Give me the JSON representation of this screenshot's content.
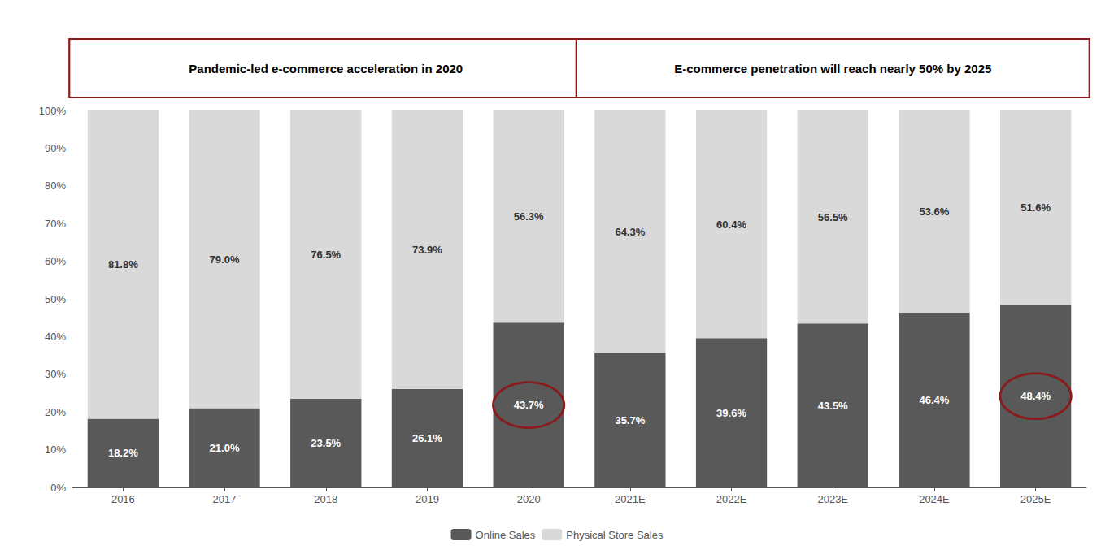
{
  "chart_data": {
    "type": "bar",
    "stacked": true,
    "categories": [
      "2016",
      "2017",
      "2018",
      "2019",
      "2020",
      "2021E",
      "2022E",
      "2023E",
      "2024E",
      "2025E"
    ],
    "series": [
      {
        "name": "Online Sales",
        "color": "#595959",
        "values": [
          18.2,
          21.0,
          23.5,
          26.1,
          43.7,
          35.7,
          39.6,
          43.5,
          46.4,
          48.4
        ],
        "value_labels": [
          "18.2%",
          "21.0%",
          "23.5%",
          "26.1%",
          "43.7%",
          "35.7%",
          "39.6%",
          "43.5%",
          "46.4%",
          "48.4%"
        ]
      },
      {
        "name": "Physical Store Sales",
        "color": "#d9d9d9",
        "values": [
          81.8,
          79.0,
          76.5,
          73.9,
          56.3,
          64.3,
          60.4,
          56.5,
          53.6,
          51.6
        ],
        "value_labels": [
          "81.8%",
          "79.0%",
          "76.5%",
          "73.9%",
          "56.3%",
          "64.3%",
          "60.4%",
          "56.5%",
          "53.6%",
          "51.6%"
        ]
      }
    ],
    "ylim": [
      0,
      100
    ],
    "yticks": [
      {
        "value": 0,
        "label": "0%"
      },
      {
        "value": 10,
        "label": "10%"
      },
      {
        "value": 20,
        "label": "20%"
      },
      {
        "value": 30,
        "label": "30%"
      },
      {
        "value": 40,
        "label": "40%"
      },
      {
        "value": 50,
        "label": "50%"
      },
      {
        "value": 60,
        "label": "60%"
      },
      {
        "value": 70,
        "label": "70%"
      },
      {
        "value": 80,
        "label": "80%"
      },
      {
        "value": 90,
        "label": "90%"
      },
      {
        "value": 100,
        "label": "100%"
      }
    ],
    "grid": false,
    "legend": "bottom",
    "data_labels": true,
    "annotations": [
      {
        "text": "Pandemic-led e-commerce acceleration in 2020",
        "category": "2020",
        "color": "#8b1a1a"
      },
      {
        "text": "E-commerce penetration will reach nearly 50% by 2025",
        "category": "2025E",
        "color": "#8b1a1a"
      }
    ]
  }
}
